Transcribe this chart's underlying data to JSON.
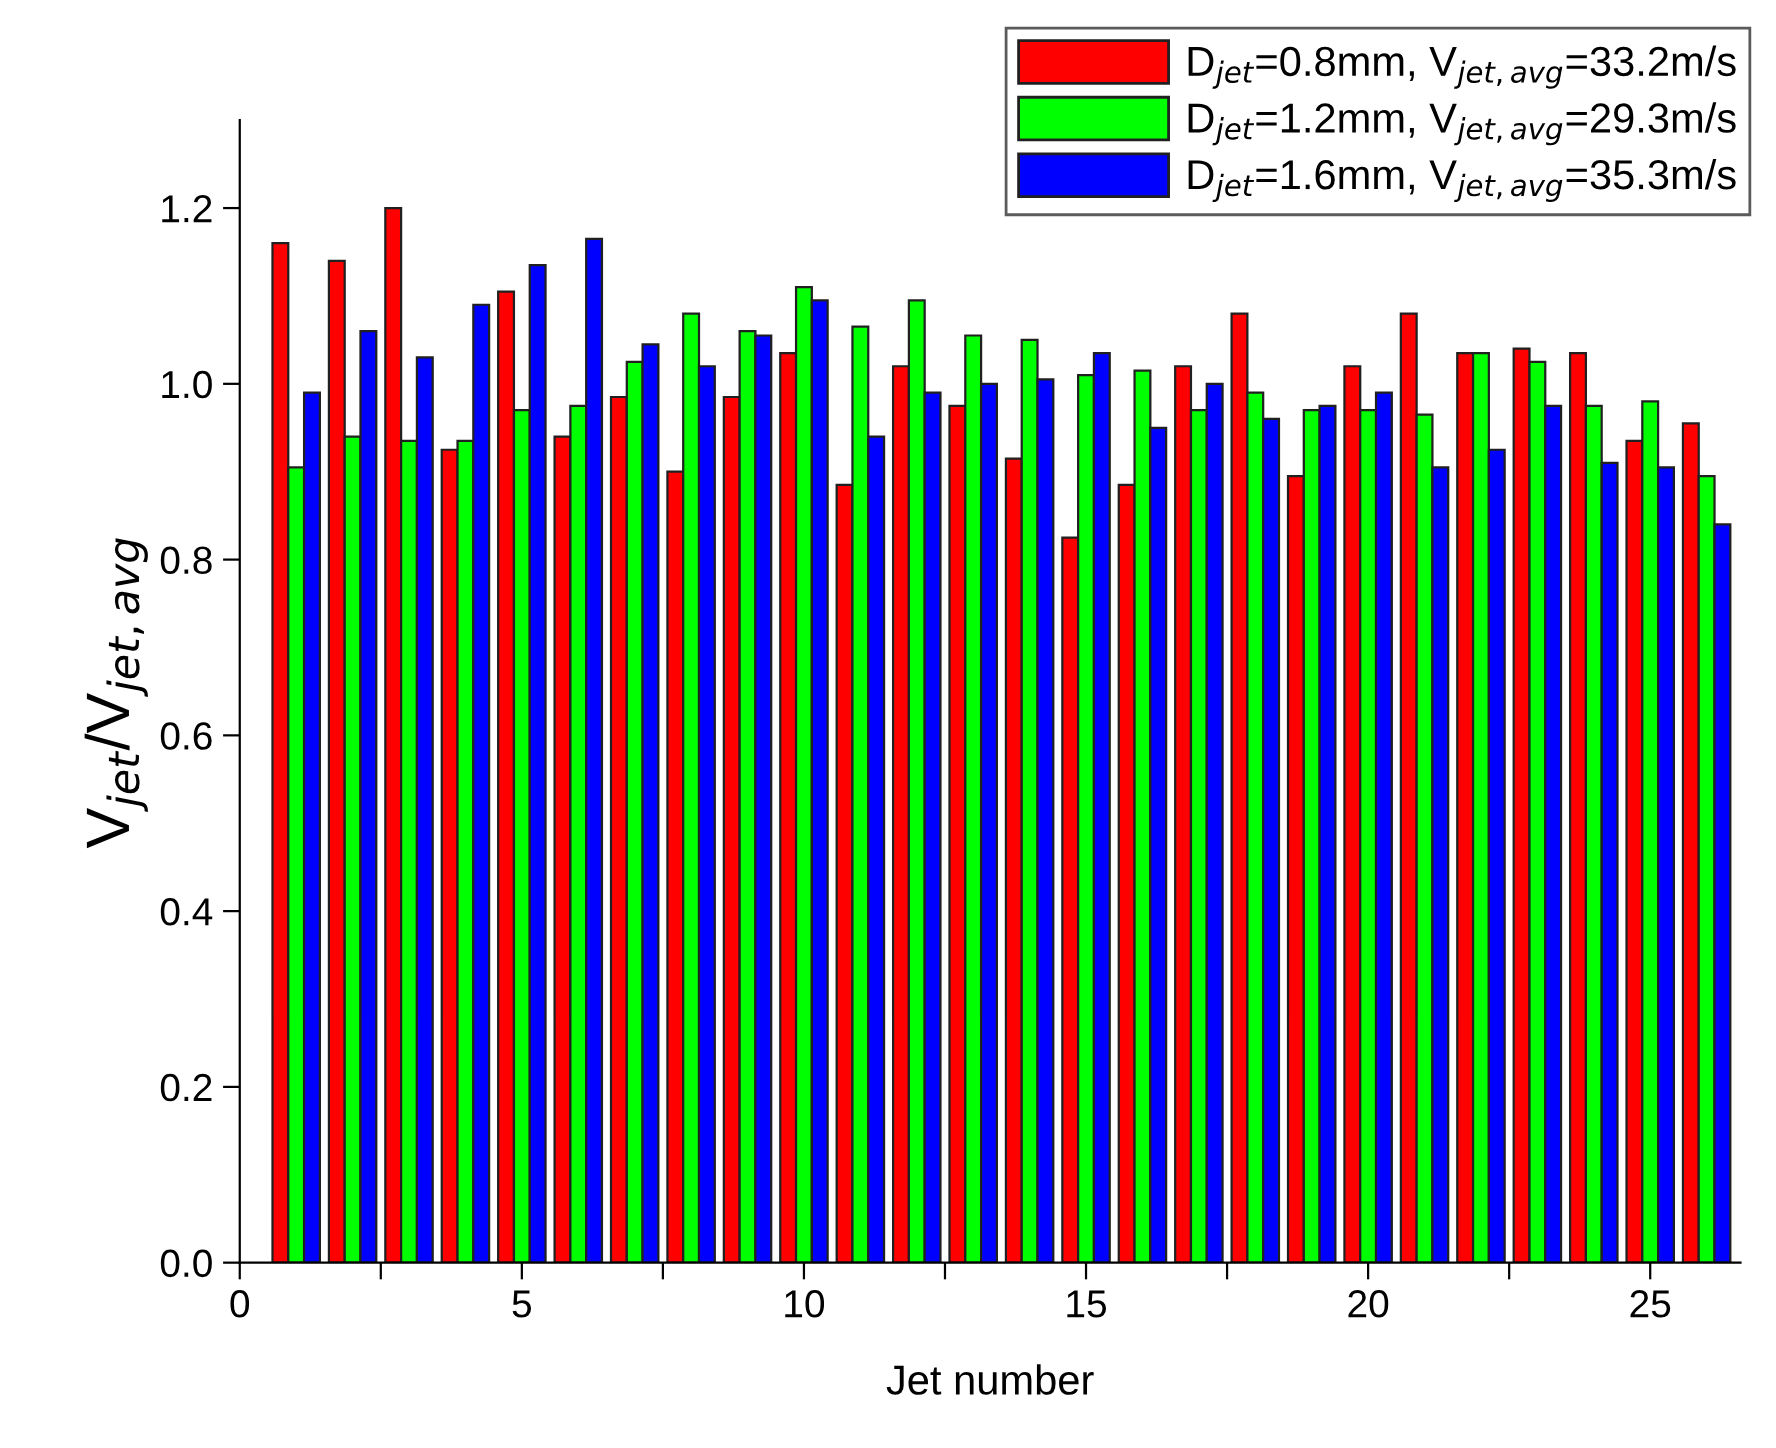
{
  "chart_data": {
    "type": "bar",
    "xlabel": "Jet number",
    "ylabel": "V$_{jet}$/V$_{jet,avg}$",
    "x": [
      1,
      2,
      3,
      4,
      5,
      6,
      7,
      8,
      9,
      10,
      11,
      12,
      13,
      14,
      15,
      16,
      17,
      18,
      19,
      20,
      21,
      22,
      23,
      24,
      25,
      26
    ],
    "series": [
      {
        "name": "D$_{jet}$=0.8mm, V$_{jet,avg}$=33.2m/s",
        "color": "#ff0000",
        "values": [
          1.16,
          1.14,
          1.2,
          0.925,
          1.105,
          0.94,
          0.985,
          0.9,
          0.985,
          1.035,
          0.885,
          1.02,
          0.975,
          0.915,
          0.825,
          0.885,
          1.02,
          1.08,
          0.895,
          1.02,
          1.08,
          1.035,
          1.04,
          1.035,
          0.935,
          0.955
        ]
      },
      {
        "name": "D$_{jet}$=1.2mm, V$_{jet,avg}$=29.3m/s",
        "color": "#00ff00",
        "values": [
          0.905,
          0.94,
          0.935,
          0.935,
          0.97,
          0.975,
          1.025,
          1.08,
          1.06,
          1.11,
          1.065,
          1.095,
          1.055,
          1.05,
          1.01,
          1.015,
          0.97,
          0.99,
          0.97,
          0.97,
          0.965,
          1.035,
          1.025,
          0.975,
          0.98,
          0.895
        ]
      },
      {
        "name": "D$_{jet}$=1.6mm, V$_{jet,avg}$=35.3m/s",
        "color": "#0000ff",
        "values": [
          0.99,
          1.06,
          1.03,
          1.09,
          1.135,
          1.165,
          1.045,
          1.02,
          1.055,
          1.095,
          0.94,
          0.99,
          1.0,
          1.005,
          1.035,
          0.95,
          1.0,
          0.96,
          0.975,
          0.99,
          0.905,
          0.925,
          0.975,
          0.91,
          0.905,
          0.84
        ]
      }
    ],
    "xlim": [
      0,
      26.6
    ],
    "xticks": [
      0,
      {
        "value": 2.5,
        "label": null
      },
      5,
      {
        "value": 7.5,
        "label": null
      },
      10,
      {
        "value": 12.5,
        "label": null
      },
      15,
      {
        "value": 17.5,
        "label": null
      },
      20,
      {
        "value": 22.5,
        "label": null
      },
      25
    ],
    "ylim": [
      0,
      1.3
    ],
    "yticks": [
      {
        "value": 0,
        "label": "0.0"
      },
      0.2,
      0.4,
      0.6,
      0.8,
      {
        "value": 1.0,
        "label": "1.0"
      },
      1.2
    ],
    "grid": false,
    "legend": "top right"
  }
}
